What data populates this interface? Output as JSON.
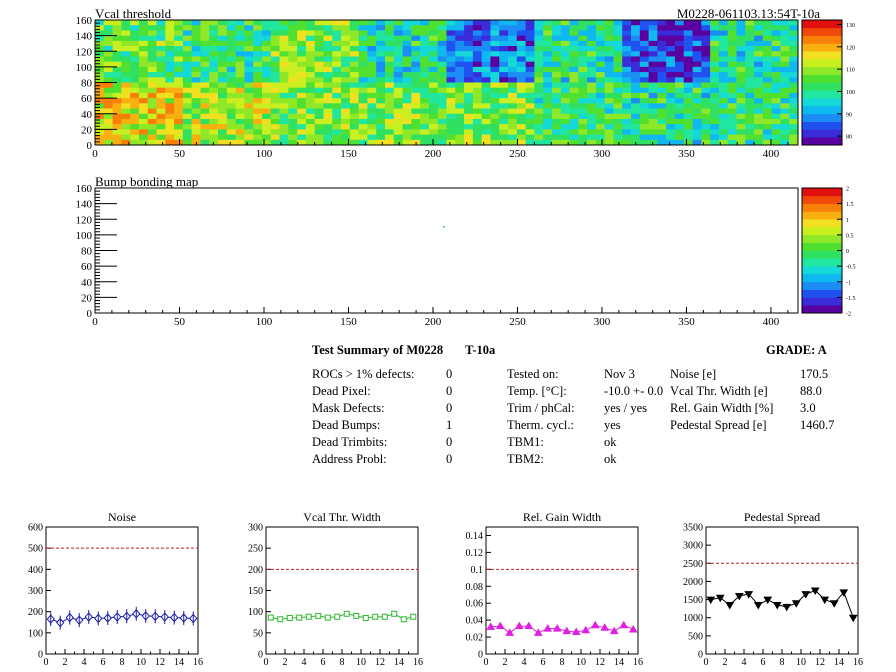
{
  "header": {
    "map1_title": "Vcal threshold",
    "module_id": "M0228-061103.13:54T-10a",
    "map2_title": "Bump bonding map"
  },
  "maps": {
    "x_ticks": [
      0,
      50,
      100,
      150,
      200,
      250,
      300,
      350,
      400
    ],
    "y_ticks": [
      0,
      20,
      40,
      60,
      80,
      100,
      120,
      140,
      160
    ],
    "xlim": [
      0,
      416
    ],
    "ylim": [
      0,
      160
    ],
    "vcal_palette_ticks": [
      80,
      90,
      100,
      110,
      120,
      130
    ],
    "vcal_palette_range": [
      76,
      132
    ],
    "bump_palette_ticks": [
      -2,
      -1.5,
      -1,
      -0.5,
      0,
      0.5,
      1,
      1.5,
      2
    ],
    "bump_palette_range": [
      -2,
      2
    ]
  },
  "summary": {
    "title": "Test Summary of M0228",
    "temp_tag": "T-10a",
    "grade_label": "GRADE:  A",
    "defects": [
      {
        "label": "ROCs > 1% defects:",
        "value": "0"
      },
      {
        "label": "Dead Pixel:",
        "value": "0"
      },
      {
        "label": "Mask Defects:",
        "value": "0"
      },
      {
        "label": "Dead Bumps:",
        "value": "1"
      },
      {
        "label": "Dead Trimbits:",
        "value": "0"
      },
      {
        "label": "Address Probl:",
        "value": "0"
      }
    ],
    "conditions": [
      {
        "label": "Tested on:",
        "value": "Nov 3"
      },
      {
        "label": "Temp. [°C]:",
        "value": "-10.0 +- 0.0"
      },
      {
        "label": "Trim / phCal:",
        "value": "yes / yes"
      },
      {
        "label": "Therm. cycl.:",
        "value": "yes"
      },
      {
        "label": "TBM1:",
        "value": "ok"
      },
      {
        "label": "TBM2:",
        "value": "ok"
      }
    ],
    "params": [
      {
        "label": "Noise [e]",
        "value": "170.5"
      },
      {
        "label": "Vcal Thr. Width [e]",
        "value": "88.0"
      },
      {
        "label": "Rel. Gain Width [%]",
        "value": "3.0"
      },
      {
        "label": "Pedestal Spread [e]",
        "value": "1460.7"
      }
    ]
  },
  "chart_data": [
    {
      "type": "line",
      "title": "Noise",
      "x": [
        0,
        1,
        2,
        3,
        4,
        5,
        6,
        7,
        8,
        9,
        10,
        11,
        12,
        13,
        14,
        15
      ],
      "values": [
        165,
        148,
        172,
        160,
        175,
        168,
        170,
        175,
        178,
        190,
        180,
        178,
        175,
        172,
        170,
        168
      ],
      "ylim": [
        0,
        600
      ],
      "xlim": [
        0,
        16
      ],
      "yticks": [
        0,
        100,
        200,
        300,
        400,
        500,
        600
      ],
      "xticks": [
        0,
        2,
        4,
        6,
        8,
        10,
        12,
        14,
        16
      ],
      "threshold": 500,
      "color": "#1a1aa8",
      "marker": "diamond"
    },
    {
      "type": "line",
      "title": "Vcal Thr. Width",
      "x": [
        0,
        1,
        2,
        3,
        4,
        5,
        6,
        7,
        8,
        9,
        10,
        11,
        12,
        13,
        14,
        15
      ],
      "values": [
        86,
        82,
        85,
        86,
        88,
        90,
        86,
        88,
        95,
        90,
        85,
        88,
        88,
        95,
        82,
        88
      ],
      "ylim": [
        0,
        300
      ],
      "xlim": [
        0,
        16
      ],
      "yticks": [
        0,
        50,
        100,
        150,
        200,
        250,
        300
      ],
      "xticks": [
        0,
        2,
        4,
        6,
        8,
        10,
        12,
        14,
        16
      ],
      "threshold": 200,
      "color": "#2db82d",
      "marker": "square"
    },
    {
      "type": "line",
      "title": "Rel. Gain Width",
      "x": [
        0,
        1,
        2,
        3,
        4,
        5,
        6,
        7,
        8,
        9,
        10,
        11,
        12,
        13,
        14,
        15
      ],
      "values": [
        0.032,
        0.033,
        0.025,
        0.033,
        0.033,
        0.025,
        0.03,
        0.03,
        0.027,
        0.026,
        0.028,
        0.034,
        0.031,
        0.027,
        0.034,
        0.029
      ],
      "ylim": [
        0,
        0.15
      ],
      "xlim": [
        0,
        16
      ],
      "yticks": [
        0,
        0.02,
        0.04,
        0.06,
        0.08,
        0.1,
        0.12,
        0.14
      ],
      "xticks": [
        0,
        2,
        4,
        6,
        8,
        10,
        12,
        14,
        16
      ],
      "threshold": 0.1,
      "color": "#e020e0",
      "marker": "triangle"
    },
    {
      "type": "line",
      "title": "Pedestal Spread",
      "x": [
        0,
        1,
        2,
        3,
        4,
        5,
        6,
        7,
        8,
        9,
        10,
        11,
        12,
        13,
        14,
        15
      ],
      "values": [
        1500,
        1550,
        1350,
        1600,
        1650,
        1350,
        1500,
        1350,
        1300,
        1400,
        1650,
        1750,
        1500,
        1400,
        1700,
        1000
      ],
      "ylim": [
        0,
        3500
      ],
      "xlim": [
        0,
        16
      ],
      "yticks": [
        0,
        500,
        1000,
        1500,
        2000,
        2500,
        3000,
        3500
      ],
      "xticks": [
        0,
        2,
        4,
        6,
        8,
        10,
        12,
        14,
        16
      ],
      "threshold": 2500,
      "color": "#000000",
      "marker": "triangle-down"
    }
  ]
}
